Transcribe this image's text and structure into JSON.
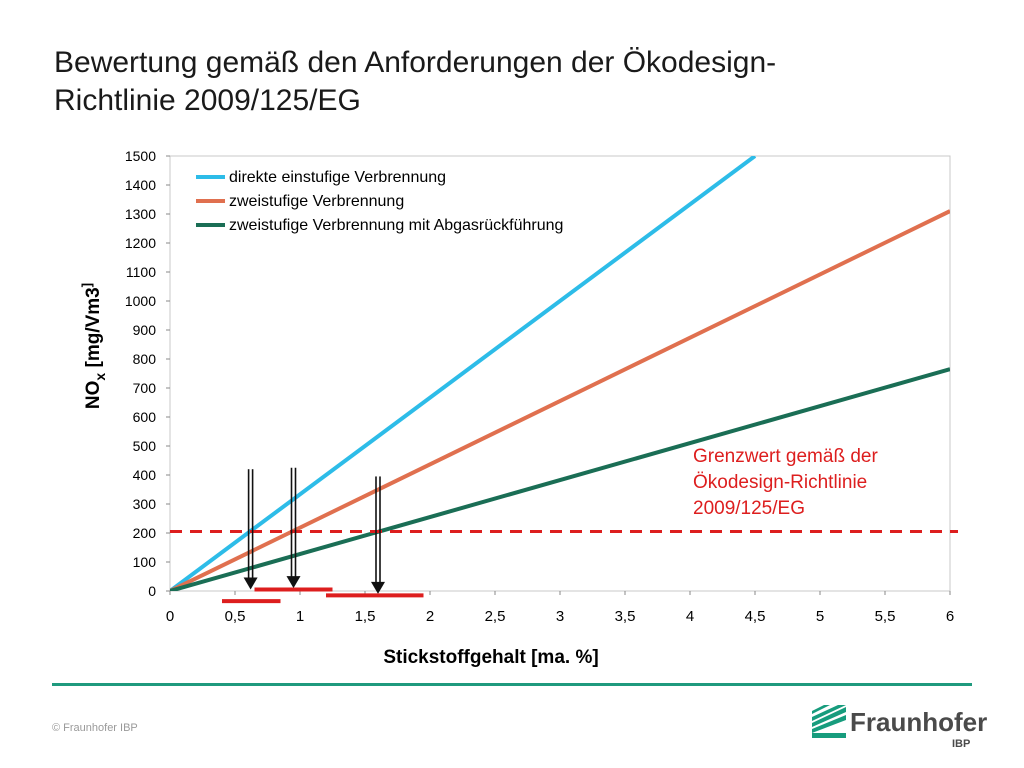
{
  "slide": {
    "title_line1": "Bewertung gemäß den Anforderungen der Ökodesign-",
    "title_line2": "Richtlinie 2009/125/EG",
    "copyright": "© Fraunhofer IBP",
    "logo_name": "Fraunhofer",
    "logo_sub": "IBP"
  },
  "chart_data": {
    "type": "line",
    "xlabel": "Stickstoffgehalt [ma. %]",
    "ylabel": "NOx [mg/Vm3]",
    "xlim": [
      0,
      6
    ],
    "ylim": [
      0,
      1500
    ],
    "x_ticks": [
      0,
      0.5,
      1,
      1.5,
      2,
      2.5,
      3,
      3.5,
      4,
      4.5,
      5,
      5.5,
      6
    ],
    "x_tick_labels": [
      "0",
      "0,5",
      "1",
      "1,5",
      "2",
      "2,5",
      "3",
      "3,5",
      "4",
      "4,5",
      "5",
      "5,5",
      "6"
    ],
    "y_ticks": [
      0,
      100,
      200,
      300,
      400,
      500,
      600,
      700,
      800,
      900,
      1000,
      1100,
      1200,
      1300,
      1400,
      1500
    ],
    "legend_position": "top-left",
    "series": [
      {
        "name": "direkte einstufige Verbrennung",
        "color": "#2dbce8",
        "x": [
          0,
          4.5
        ],
        "y": [
          0,
          1500
        ]
      },
      {
        "name": "zweistufige Verbrennung",
        "color": "#e0704f",
        "x": [
          0,
          6
        ],
        "y": [
          0,
          1310
        ]
      },
      {
        "name": "zweistufige Verbrennung mit Abgasrückführung",
        "color": "#1a6e55",
        "x": [
          0,
          6
        ],
        "y": [
          0,
          765
        ]
      }
    ],
    "threshold": {
      "value": 205,
      "color": "#dd1e1e",
      "label_lines": [
        "Grenzwert gemäß der",
        "Ökodesign-Richtlinie",
        "2009/125/EG"
      ]
    },
    "arrows": [
      {
        "x": 0.62,
        "y_top": 420,
        "y_bottom": 5
      },
      {
        "x": 0.95,
        "y_top": 425,
        "y_bottom": 10
      },
      {
        "x": 1.6,
        "y_top": 395,
        "y_bottom": -10
      }
    ],
    "ranges": [
      {
        "x_from": 0.4,
        "x_to": 0.85,
        "y": -35
      },
      {
        "x_from": 0.65,
        "x_to": 1.25,
        "y": 5
      },
      {
        "x_from": 1.2,
        "x_to": 1.95,
        "y": -15
      }
    ],
    "range_color": "#dd1e1e",
    "arrow_color": "#111111"
  }
}
